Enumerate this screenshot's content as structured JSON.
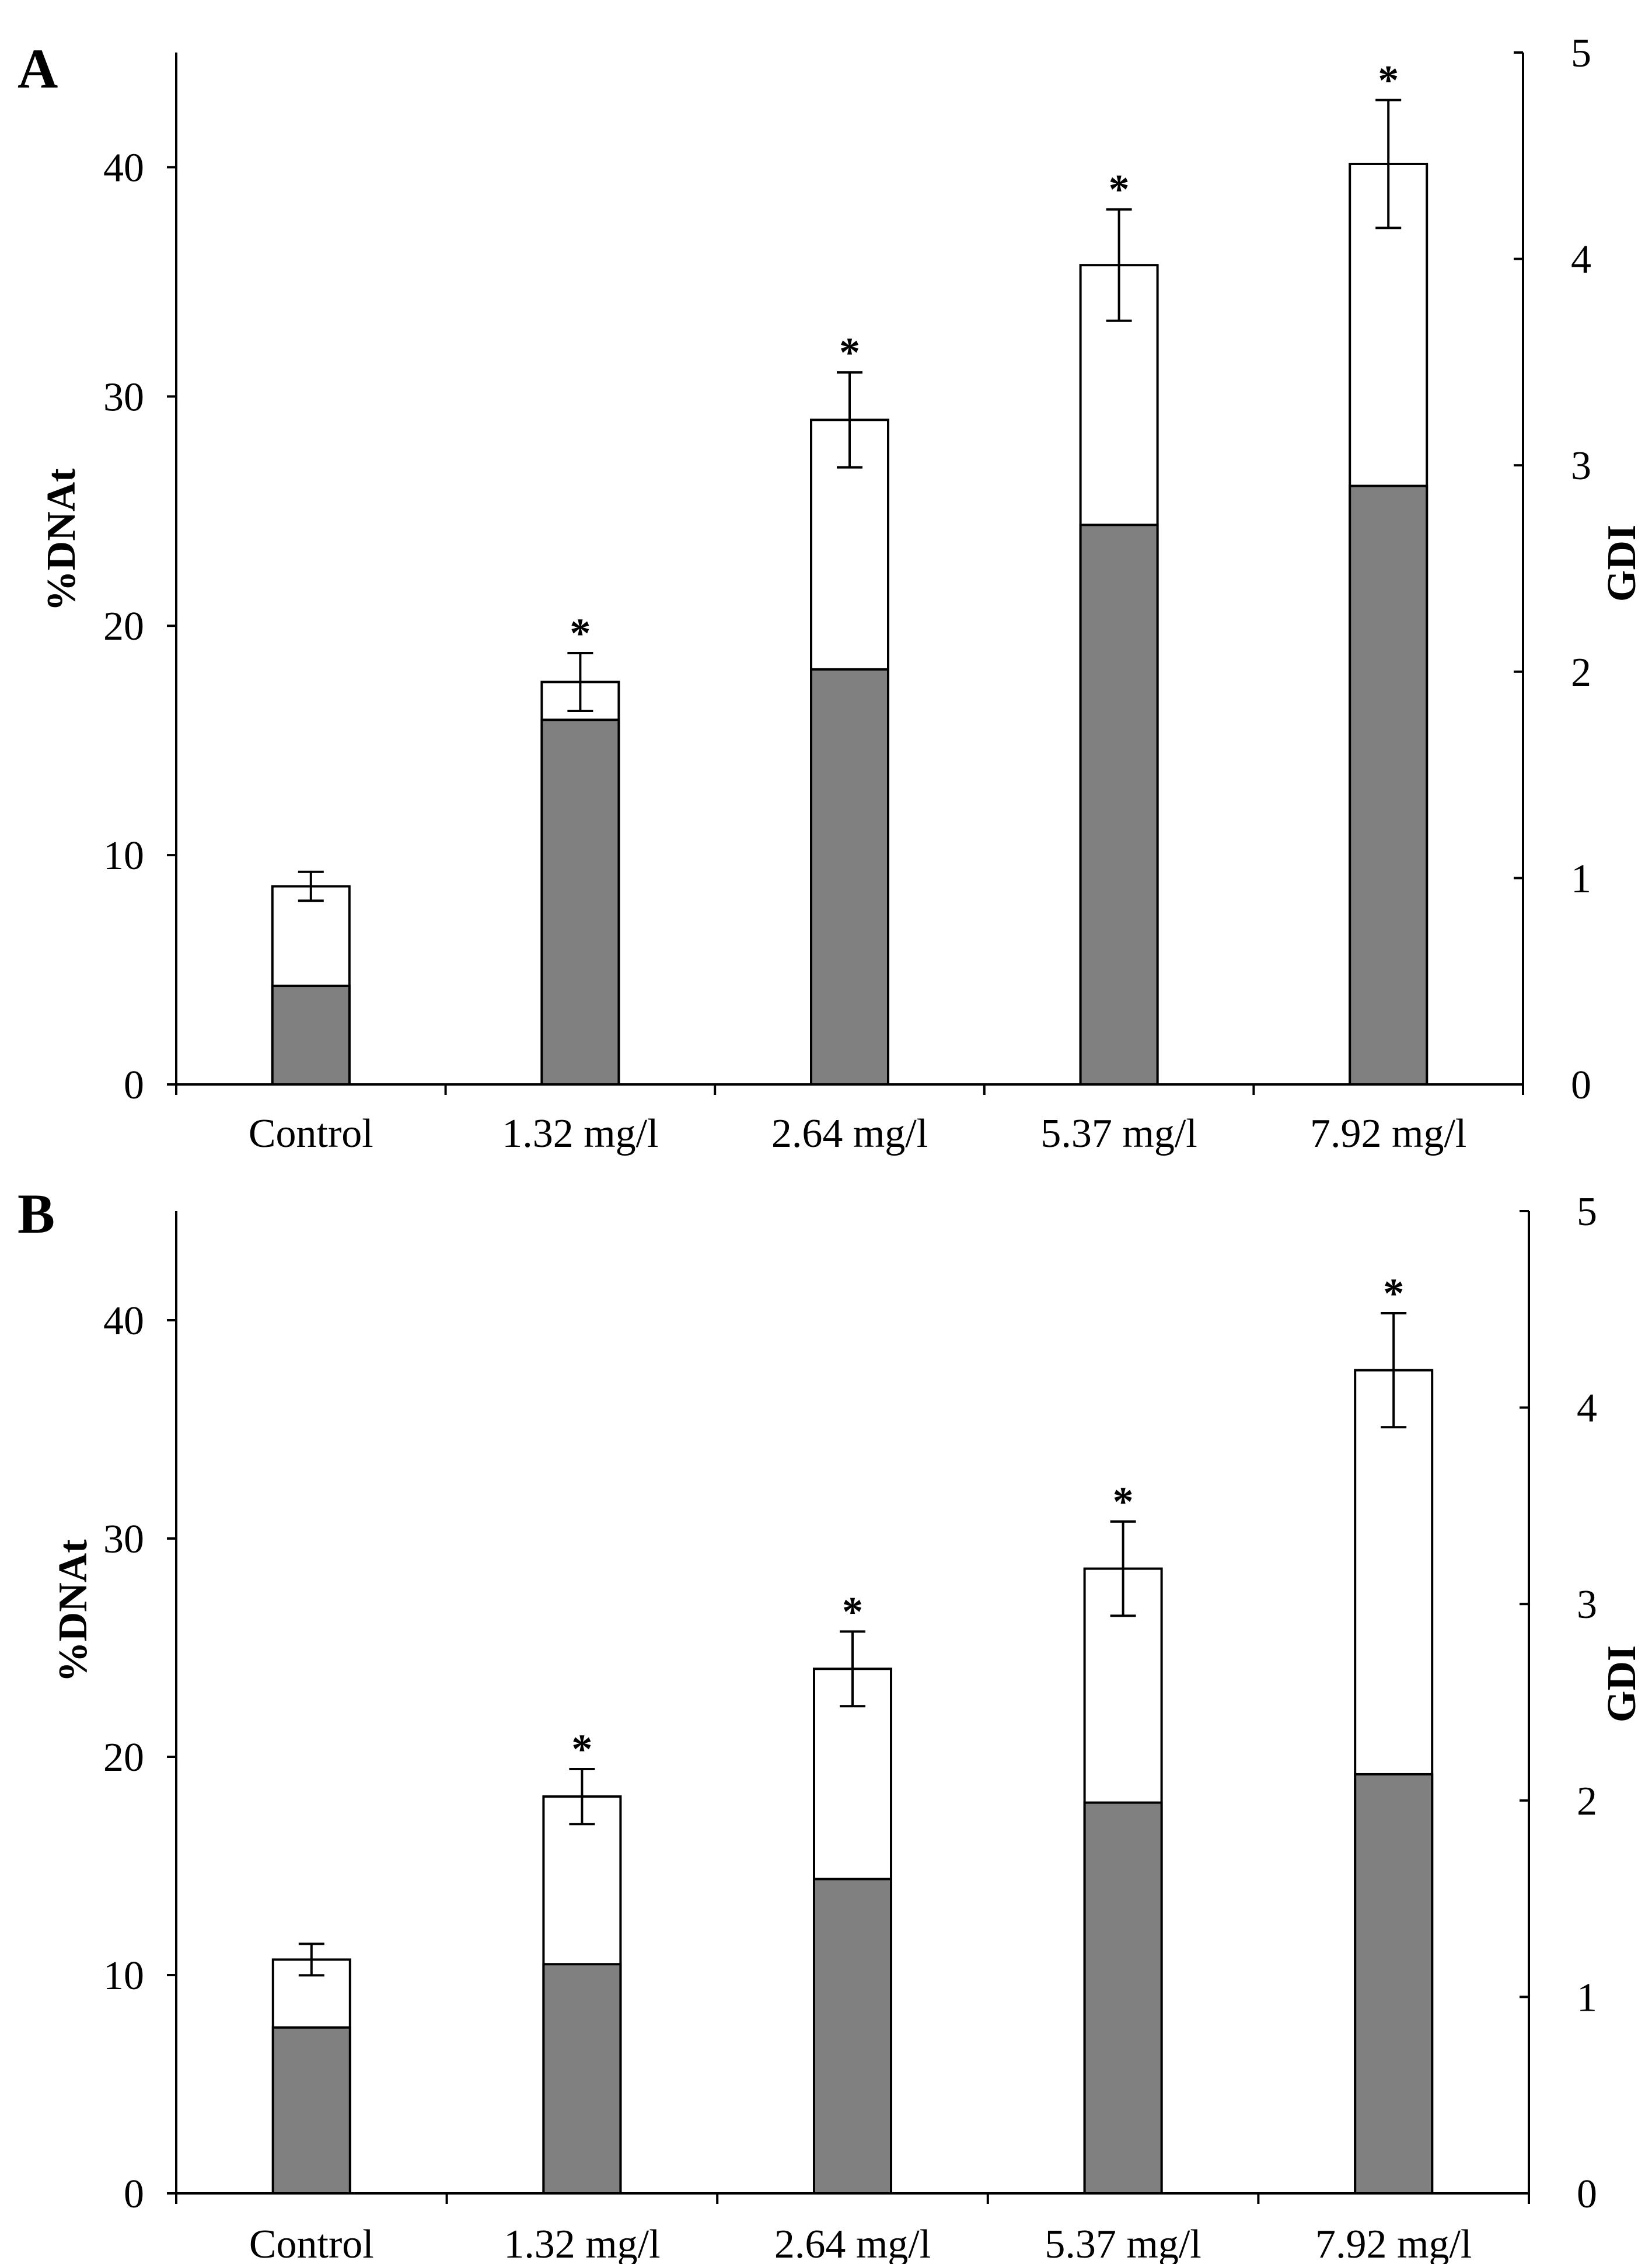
{
  "chart_data": [
    {
      "panel": "A",
      "type": "bar",
      "title": "",
      "ylabel": "%DNAt",
      "ylabel_right": "GDI",
      "ylim": [
        0,
        45
      ],
      "y_ticks": [
        0,
        10,
        20,
        30,
        40
      ],
      "ylim_right": [
        0,
        5
      ],
      "y_ticks_right": [
        0,
        1,
        2,
        3,
        4,
        5
      ],
      "categories": [
        "Control",
        "1.32 mg/l",
        "2.64 mg/l",
        "5.37 mg/l",
        "7.92 mg/l"
      ],
      "series": [
        {
          "name": "%DNAt",
          "axis": "left",
          "color": "#808080",
          "values": [
            4.3,
            15.9,
            18.1,
            24.4,
            26.1
          ]
        },
        {
          "name": "GDI",
          "axis": "right",
          "color": "#ffffff",
          "values": [
            0.96,
            1.95,
            3.22,
            3.97,
            4.46
          ],
          "error": [
            0.07,
            0.14,
            0.23,
            0.27,
            0.31
          ]
        }
      ],
      "significance": [
        "",
        "*",
        "*",
        "*",
        "*"
      ]
    },
    {
      "panel": "B",
      "type": "bar",
      "title": "",
      "ylabel": "%DNAt",
      "ylabel_right": "GDI",
      "ylim": [
        0,
        45
      ],
      "y_ticks": [
        0,
        10,
        20,
        30,
        40
      ],
      "ylim_right": [
        0,
        5
      ],
      "y_ticks_right": [
        0,
        1,
        2,
        3,
        4,
        5
      ],
      "categories": [
        "Control",
        "1.32 mg/l",
        "2.64 mg/l",
        "5.37 mg/l",
        "7.92 mg/l"
      ],
      "series": [
        {
          "name": "%DNAt",
          "axis": "left",
          "color": "#808080",
          "values": [
            7.6,
            10.5,
            14.4,
            17.9,
            19.2
          ]
        },
        {
          "name": "GDI",
          "axis": "right",
          "color": "#ffffff",
          "values": [
            1.19,
            2.02,
            2.67,
            3.18,
            4.19
          ],
          "error": [
            0.08,
            0.14,
            0.19,
            0.24,
            0.29
          ]
        }
      ],
      "significance": [
        "",
        "*",
        "*",
        "*",
        "*"
      ]
    }
  ]
}
